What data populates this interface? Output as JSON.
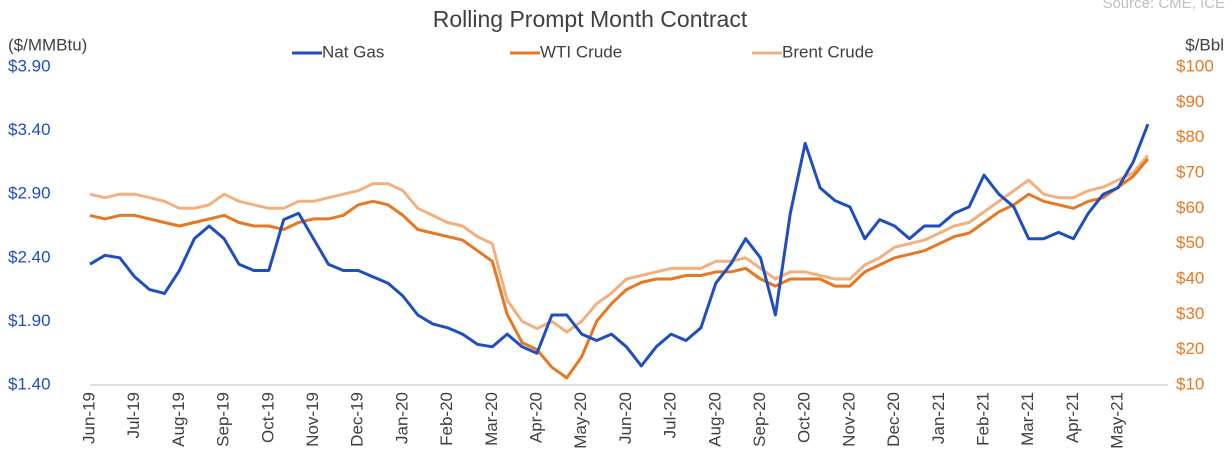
{
  "chart_data": {
    "type": "line",
    "title": "Rolling Prompt Month Contract",
    "source": "Source: CME, ICE",
    "ylabel": "($/MMBtu)",
    "y2label": "$/Bbl",
    "categories": [
      "Jun-19",
      null,
      null,
      "Jul-19",
      null,
      null,
      "Aug-19",
      null,
      null,
      "Sep-19",
      null,
      null,
      "Oct-19",
      null,
      null,
      "Nov-19",
      null,
      null,
      "Dec-19",
      null,
      null,
      "Jan-20",
      null,
      null,
      "Feb-20",
      null,
      null,
      "Mar-20",
      null,
      null,
      "Apr-20",
      null,
      null,
      "May-20",
      null,
      null,
      "Jun-20",
      null,
      null,
      "Jul-20",
      null,
      null,
      "Aug-20",
      null,
      null,
      "Sep-20",
      null,
      null,
      "Oct-20",
      null,
      null,
      "Nov-20",
      null,
      null,
      "Dec-20",
      null,
      null,
      "Jan-21",
      null,
      null,
      "Feb-21",
      null,
      null,
      "Mar-21",
      null,
      null,
      "Apr-21",
      null,
      null,
      "May-21",
      null,
      null
    ],
    "series": [
      {
        "name": "Nat Gas",
        "color": "#1f4fbd",
        "values": [
          2.35,
          2.42,
          2.4,
          2.25,
          2.15,
          2.12,
          2.3,
          2.55,
          2.65,
          2.55,
          2.35,
          2.3,
          2.3,
          2.7,
          2.75,
          2.55,
          2.35,
          2.3,
          2.3,
          2.25,
          2.2,
          2.1,
          1.95,
          1.88,
          1.85,
          1.8,
          1.72,
          1.7,
          1.8,
          1.7,
          1.65,
          1.95,
          1.95,
          1.8,
          1.75,
          1.8,
          1.7,
          1.55,
          1.7,
          1.8,
          1.75,
          1.85,
          2.2,
          2.35,
          2.55,
          2.4,
          1.95,
          2.75,
          3.3,
          2.95,
          2.85,
          2.8,
          2.55,
          2.7,
          2.65,
          2.55,
          2.65,
          2.65,
          2.75,
          2.8,
          3.05,
          2.9,
          2.8,
          2.55,
          2.55,
          2.6,
          2.55,
          2.75,
          2.9,
          2.95,
          3.15,
          3.45
        ]
      },
      {
        "name": "WTI Crude",
        "color": "#e87722",
        "axis": "y2",
        "values": [
          58,
          57,
          58,
          58,
          57,
          56,
          55,
          56,
          57,
          58,
          56,
          55,
          55,
          54,
          56,
          57,
          57,
          58,
          61,
          62,
          61,
          58,
          54,
          53,
          52,
          51,
          48,
          45,
          30,
          22,
          20,
          15,
          12,
          18,
          28,
          33,
          37,
          39,
          40,
          40,
          41,
          41,
          42,
          42,
          43,
          40,
          38,
          40,
          40,
          40,
          38,
          38,
          42,
          44,
          46,
          47,
          48,
          50,
          52,
          53,
          56,
          59,
          61,
          64,
          62,
          61,
          60,
          62,
          63,
          66,
          69,
          74
        ]
      },
      {
        "name": "Brent Crude",
        "color": "#f2b07e",
        "axis": "y2",
        "values": [
          64,
          63,
          64,
          64,
          63,
          62,
          60,
          60,
          61,
          64,
          62,
          61,
          60,
          60,
          62,
          62,
          63,
          64,
          65,
          67,
          67,
          65,
          60,
          58,
          56,
          55,
          52,
          50,
          34,
          28,
          26,
          28,
          25,
          28,
          33,
          36,
          40,
          41,
          42,
          43,
          43,
          43,
          45,
          45,
          46,
          43,
          40,
          42,
          42,
          41,
          40,
          40,
          44,
          46,
          49,
          50,
          51,
          53,
          55,
          56,
          59,
          62,
          65,
          68,
          64,
          63,
          63,
          65,
          66,
          68,
          70,
          75
        ]
      }
    ],
    "ylim": [
      1.4,
      3.9
    ],
    "yticks": [
      {
        "value": 1.4,
        "label": "$1.40"
      },
      {
        "value": 1.9,
        "label": "$1.90"
      },
      {
        "value": 2.4,
        "label": "$2.40"
      },
      {
        "value": 2.9,
        "label": "$2.90"
      },
      {
        "value": 3.4,
        "label": "$3.40"
      },
      {
        "value": 3.9,
        "label": "$3.90"
      }
    ],
    "y2lim": [
      10,
      100
    ],
    "y2ticks": [
      {
        "value": 10,
        "label": "$10"
      },
      {
        "value": 20,
        "label": "$20"
      },
      {
        "value": 30,
        "label": "$30"
      },
      {
        "value": 40,
        "label": "$40"
      },
      {
        "value": 50,
        "label": "$50"
      },
      {
        "value": 60,
        "label": "$60"
      },
      {
        "value": 70,
        "label": "$70"
      },
      {
        "value": 80,
        "label": "$80"
      },
      {
        "value": 90,
        "label": "$90"
      },
      {
        "value": 100,
        "label": "$100"
      }
    ],
    "yaxis_color": "#1f4fbd",
    "y2axis_color": "#e87722",
    "grid": false
  }
}
